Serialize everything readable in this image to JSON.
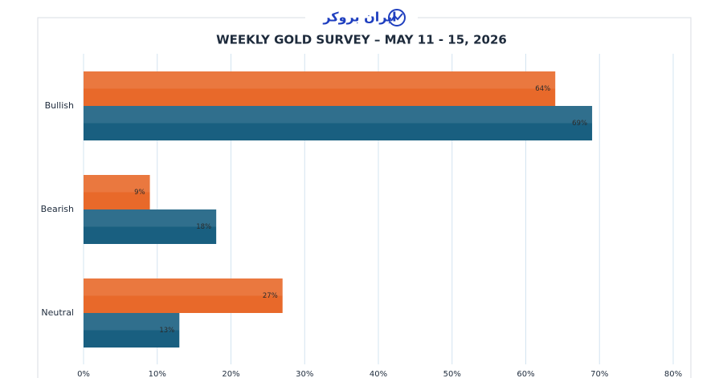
{
  "logo": "ایران بروکر",
  "chart_data": {
    "type": "hbar",
    "title": "WEEKLY GOLD SURVEY – MAY 11 - 15, 2026",
    "categories": [
      "Bullish",
      "Bearish",
      "Neutral"
    ],
    "series": [
      {
        "color": "#e8692a",
        "values": [
          64,
          9,
          27
        ],
        "value_labels": [
          "64%",
          "9%",
          "27%"
        ]
      },
      {
        "color": "#195f80",
        "values": [
          69,
          18,
          13
        ],
        "value_labels": [
          "69%",
          "18%",
          "13%"
        ]
      }
    ],
    "xlim": [
      0,
      80
    ],
    "xticks": [
      {
        "value": 0,
        "label": "0%"
      },
      {
        "value": 10,
        "label": "10%"
      },
      {
        "value": 20,
        "label": "20%"
      },
      {
        "value": 30,
        "label": "30%"
      },
      {
        "value": 40,
        "label": "40%"
      },
      {
        "value": 50,
        "label": "50%"
      },
      {
        "value": 60,
        "label": "60%"
      },
      {
        "value": 70,
        "label": "70%"
      },
      {
        "value": 80,
        "label": "80%"
      }
    ],
    "grid": true
  }
}
